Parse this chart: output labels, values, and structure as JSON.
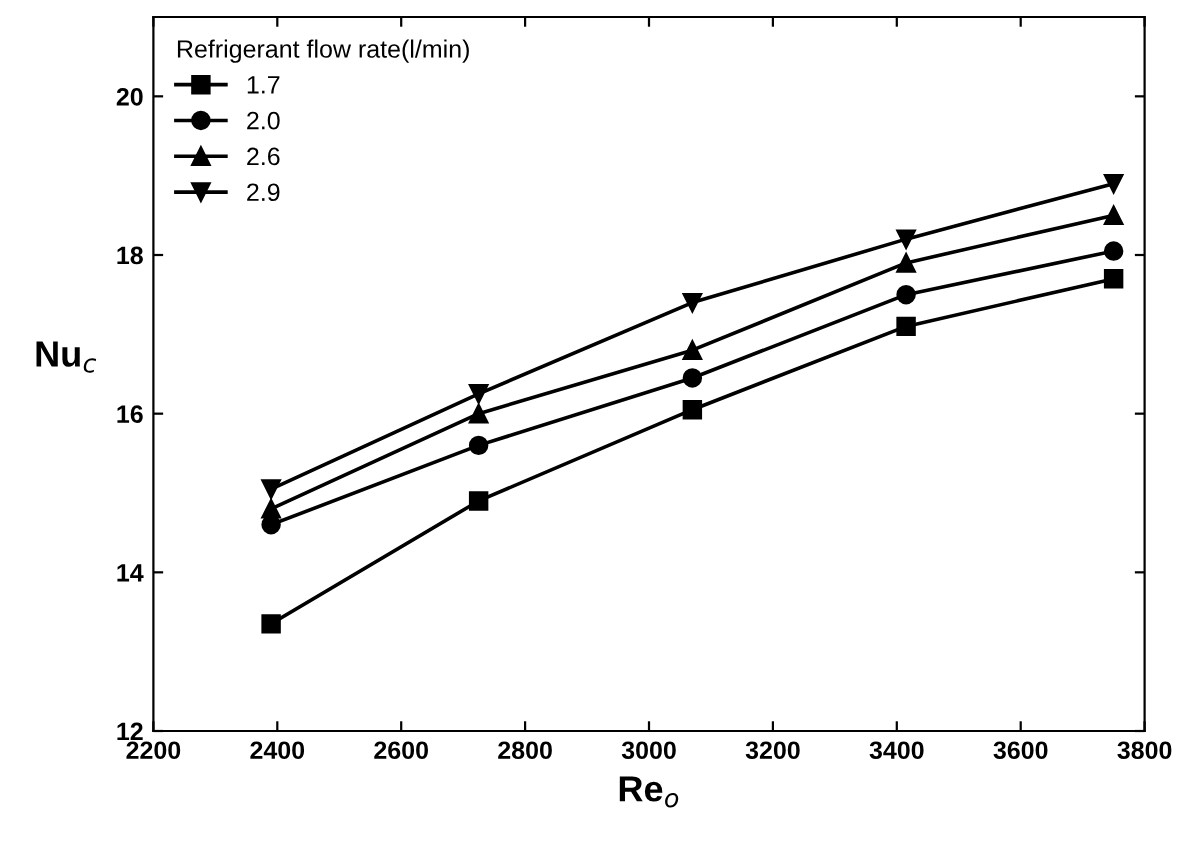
{
  "chart_data": {
    "type": "line",
    "xlabel": "Re$_{o}$",
    "ylabel": "Nu$_{c}$",
    "legend_title": "Refrigerant flow rate(l/min)",
    "legend": "top left",
    "grid": false,
    "x": [
      2390,
      2725,
      3070,
      3415,
      3750
    ],
    "series": [
      {
        "name": "1.7",
        "color": "#000000",
        "marker": "square",
        "values": [
          13.35,
          14.9,
          16.05,
          17.1,
          17.7
        ]
      },
      {
        "name": "2.0",
        "color": "#000000",
        "marker": "circle",
        "values": [
          14.6,
          15.6,
          16.45,
          17.5,
          18.05
        ]
      },
      {
        "name": "2.6",
        "color": "#000000",
        "marker": "triangle",
        "values": [
          14.8,
          16.0,
          16.8,
          17.9,
          18.5
        ]
      },
      {
        "name": "2.9",
        "color": "#000000",
        "marker": "triangle_down",
        "values": [
          15.05,
          16.25,
          17.4,
          18.2,
          18.9
        ]
      }
    ],
    "xlim": [
      2200,
      3800
    ],
    "xticks": [
      2200,
      2400,
      2600,
      2800,
      3000,
      3200,
      3400,
      3600,
      3800
    ],
    "ylim": [
      12,
      21
    ],
    "yticks": [
      12,
      14,
      16,
      18,
      20
    ]
  }
}
